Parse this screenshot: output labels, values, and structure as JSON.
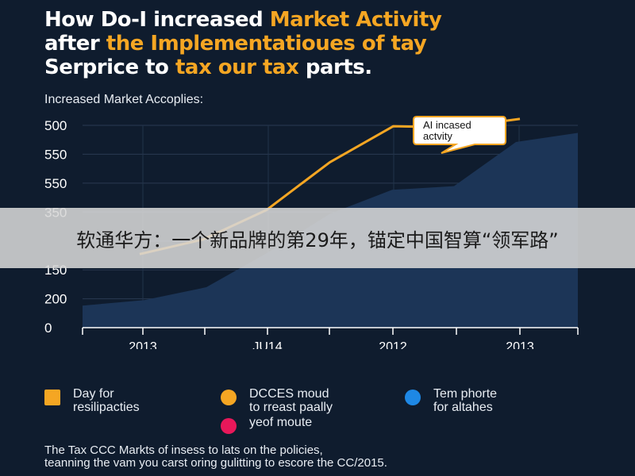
{
  "title": {
    "line1_a": "How Do-I increased ",
    "line1_b": "Market Activity",
    "line2_a": "after ",
    "line2_b": "the Implementatioues of tay",
    "line3_a": "Serprice to ",
    "line3_b": "tax our tax",
    "line3_c": " parts."
  },
  "subtitle": "Increased Market Accoplies:",
  "annotation": "AI incased\nactvity",
  "banner": "软通华方：一个新品牌的第29年，锚定中国智算“领军路”",
  "legend": {
    "item1": "Day for\nresilipacties",
    "item2": "DCCES moud\nto rreast paally",
    "item3": "Tem phorte\nfor altahes",
    "item4": "yeof moute"
  },
  "footer": {
    "line1": "The Tax CCC Markts of insess to lats on the policies,",
    "line2": "teanning the vam you carst oring gulitting to escore the CC/2015."
  },
  "colors": {
    "line": "#f5a623",
    "area": "#1c3557",
    "background": "#0f1c2e"
  },
  "chart_data": {
    "type": "line",
    "y_tick_labels": [
      "500",
      "550",
      "550",
      "350",
      "",
      "150",
      "200",
      "0"
    ],
    "x_tick_labels": [
      "2013",
      "JU14",
      "2012",
      "2013"
    ],
    "grid": true,
    "series": [
      {
        "values": [
          200,
          240,
          320,
          450,
          548,
          545,
          568
        ]
      },
      {
        "values": [
          60,
          75,
          110,
          205,
          310,
          375,
          385,
          505,
          530
        ]
      }
    ]
  }
}
